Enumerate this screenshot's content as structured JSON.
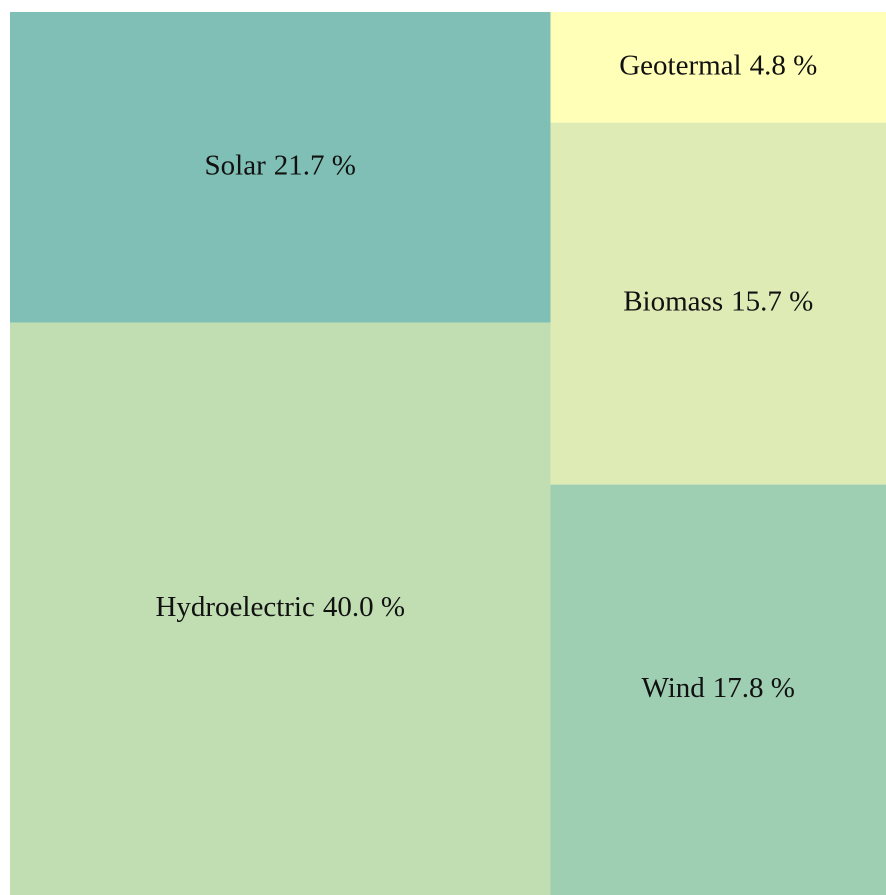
{
  "chart_data": {
    "type": "treemap",
    "categories": [
      "Solar",
      "Hydroelectric",
      "Geotermal",
      "Biomass",
      "Wind"
    ],
    "values": [
      21.7,
      40.0,
      4.8,
      15.7,
      17.8
    ],
    "value_labels": [
      "21.7 %",
      "40.0 %",
      "4.8 %",
      "15.7 %",
      "17.8 %"
    ],
    "colors": [
      "#80bfb5",
      "#c0deb2",
      "#ffffb8",
      "#deebb5",
      "#9ecfb2"
    ]
  }
}
